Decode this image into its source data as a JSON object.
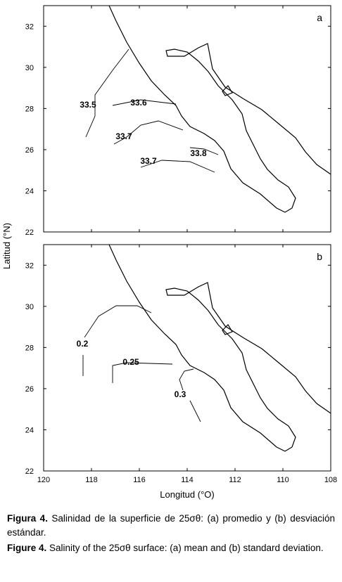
{
  "axes": {
    "x_label": "Longitud   (°O)",
    "y_label": "Latitud   (°N)",
    "xlim": [
      120,
      108
    ],
    "ylim": [
      22,
      33
    ],
    "xticks": [
      120,
      118,
      116,
      114,
      112,
      110,
      108
    ],
    "yticks": [
      22,
      24,
      26,
      28,
      30,
      32
    ]
  },
  "panels": [
    {
      "label": "a",
      "contour_labels": [
        33.5,
        33.6,
        33.7,
        33.7,
        33.8
      ]
    },
    {
      "label": "b",
      "contour_labels": [
        0.2,
        0.25,
        0.3
      ]
    }
  ],
  "caption": {
    "es_label": "Figura 4.",
    "es_text": "Salinidad de la superficie de 25σθ: (a) promedio y (b) desviación estándar.",
    "en_label": "Figure 4.",
    "en_text": "Salinity of the 25σθ surface: (a) mean and (b) standard deviation."
  }
}
